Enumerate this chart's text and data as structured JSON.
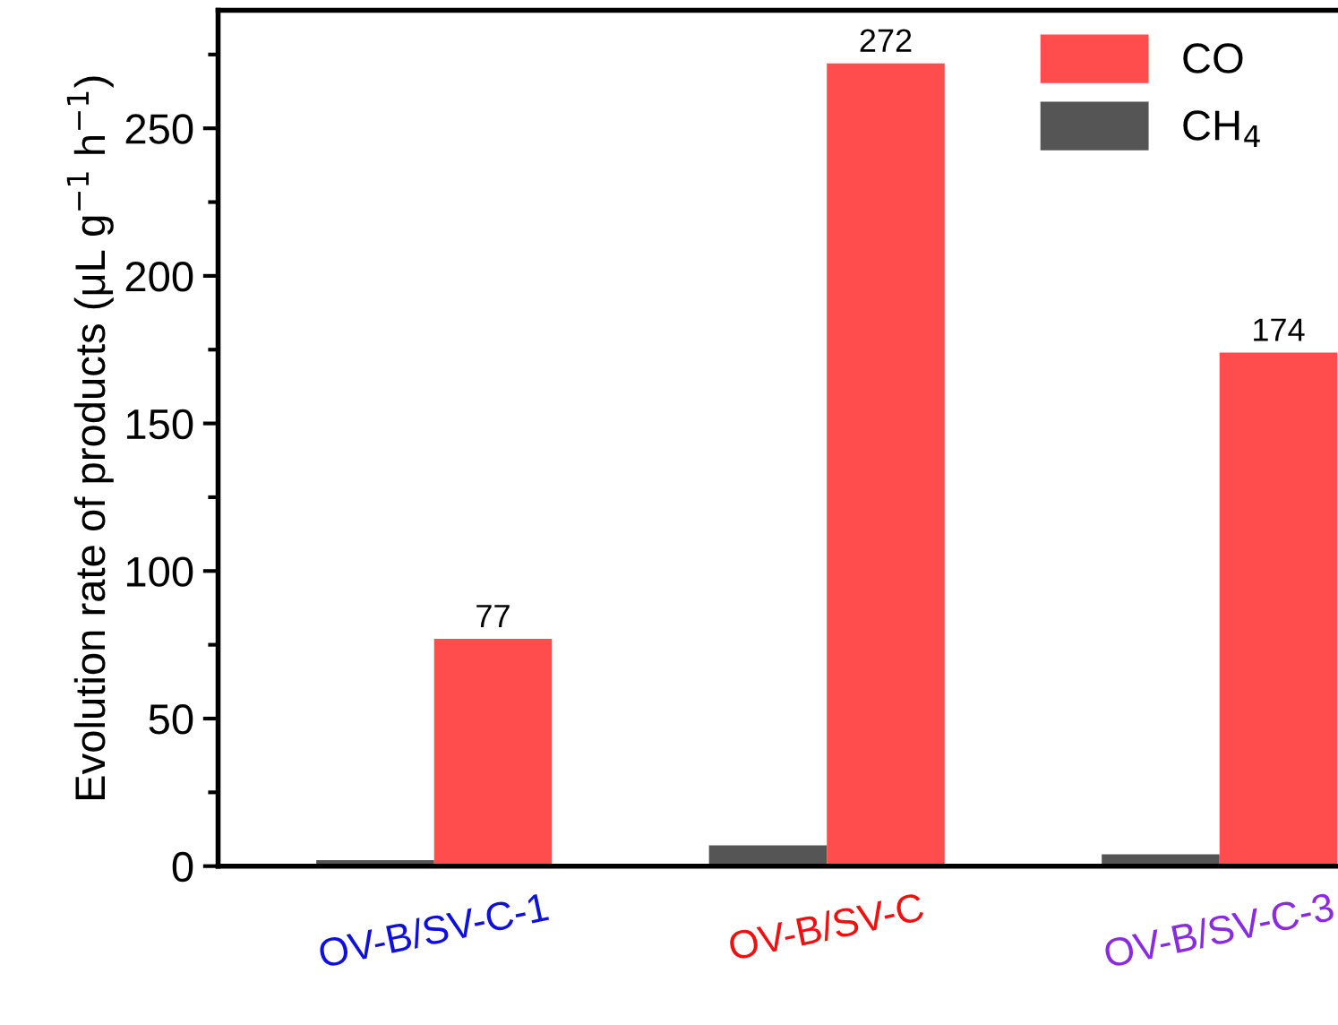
{
  "chart_data": {
    "type": "bar",
    "categories": [
      "OV-B/SV-C-1",
      "OV-B/SV-C",
      "OV-B/SV-C-3"
    ],
    "ylabel": "Evolution rate of products (μL g$^{−1}$ h$^{−1}$)",
    "ylim": [
      0,
      290
    ],
    "yticks": [
      0,
      50,
      100,
      150,
      200,
      250
    ],
    "legend": "top right",
    "grid": false,
    "series": [
      {
        "name": "CH$_{4}$",
        "color": "#555555",
        "values": [
          2,
          7,
          4
        ]
      },
      {
        "name": "CO",
        "color": "#ff4d4d",
        "values": [
          77,
          272,
          174
        ],
        "value_labels": [
          "77",
          "272",
          "174"
        ]
      }
    ]
  }
}
